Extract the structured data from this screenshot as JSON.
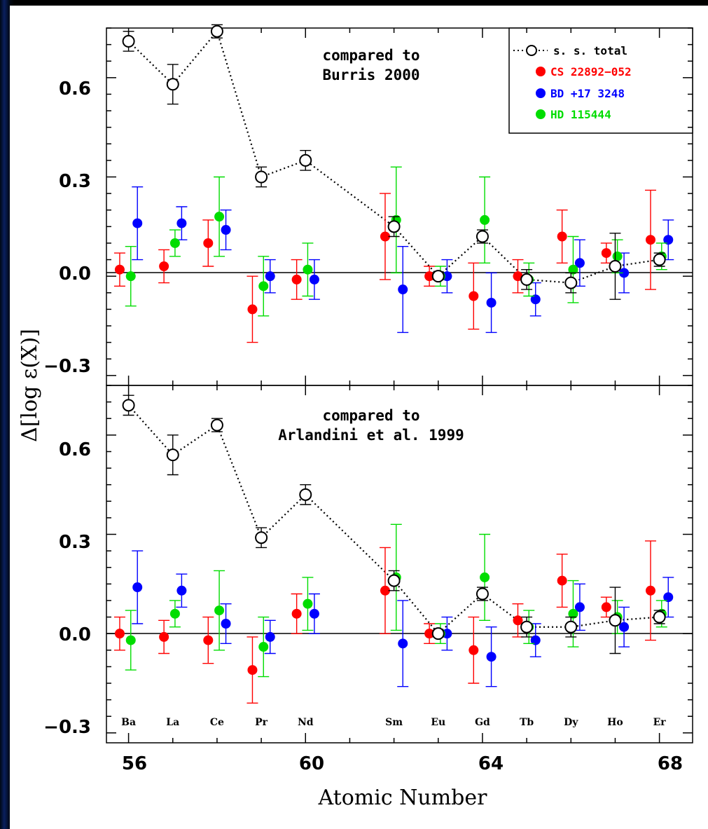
{
  "chart_data": {
    "type": "scatter",
    "xlabel": "Atomic Number",
    "ylabel": "Δ[log ε(X)]",
    "xlim": [
      55.5,
      68.75
    ],
    "x_ticks": [
      "56",
      "60",
      "64",
      "68"
    ],
    "y_ticks": [
      "0.6",
      "0.3",
      "0.0",
      "−0.3"
    ],
    "grid": false,
    "legend": {
      "placement": "top-right",
      "entries": [
        {
          "label": "s. s. total",
          "color": "#000000",
          "marker": "open-circle-dotted-line"
        },
        {
          "label": "CS 22892−052",
          "color": "#ff0000",
          "marker": "filled-circle"
        },
        {
          "label": "BD +17 3248",
          "color": "#0000ff",
          "marker": "filled-circle"
        },
        {
          "label": "HD 115444",
          "color": "#00dd00",
          "marker": "filled-circle"
        }
      ]
    },
    "element_labels": [
      {
        "z": 56,
        "label": "Ba"
      },
      {
        "z": 57,
        "label": "La"
      },
      {
        "z": 58,
        "label": "Ce"
      },
      {
        "z": 59,
        "label": "Pr"
      },
      {
        "z": 60,
        "label": "Nd"
      },
      {
        "z": 62,
        "label": "Sm"
      },
      {
        "z": 63,
        "label": "Eu"
      },
      {
        "z": 64,
        "label": "Gd"
      },
      {
        "z": 65,
        "label": "Tb"
      },
      {
        "z": 66,
        "label": "Dy"
      },
      {
        "z": 67,
        "label": "Ho"
      },
      {
        "z": 68,
        "label": "Er"
      }
    ],
    "panels": [
      {
        "annotation": [
          "compared to",
          "Burris 2000"
        ],
        "ylim": [
          -0.33,
          0.75
        ],
        "series": [
          {
            "name": "s. s. total",
            "color": "#000000",
            "offset": 0,
            "x": [
              56,
              57,
              58,
              59,
              60,
              62,
              63,
              64,
              65,
              66,
              67,
              68
            ],
            "y": [
              0.71,
              0.58,
              0.74,
              0.3,
              0.35,
              0.15,
              0.0,
              0.12,
              -0.01,
              -0.02,
              0.03,
              0.05
            ],
            "err": [
              0.03,
              0.06,
              0.02,
              0.03,
              0.03,
              0.03,
              0.01,
              0.02,
              0.03,
              0.03,
              0.1,
              0.02
            ]
          },
          {
            "name": "CS 22892−052",
            "color": "#ff0000",
            "offset": -0.2,
            "x": [
              56,
              57,
              58,
              59,
              60,
              62,
              63,
              64,
              65,
              66,
              67,
              68
            ],
            "y": [
              0.02,
              0.03,
              0.1,
              -0.1,
              -0.01,
              0.12,
              0.0,
              -0.06,
              0.0,
              0.12,
              0.07,
              0.11
            ],
            "err": [
              0.05,
              0.05,
              0.07,
              0.1,
              0.06,
              0.13,
              0.03,
              0.1,
              0.05,
              0.08,
              0.03,
              0.15
            ]
          },
          {
            "name": "BD +17 3248",
            "color": "#0000ff",
            "offset": 0.2,
            "x": [
              56,
              57,
              58,
              59,
              60,
              62,
              63,
              64,
              65,
              66,
              67,
              68
            ],
            "y": [
              0.16,
              0.16,
              0.14,
              0.0,
              -0.01,
              -0.04,
              0.0,
              -0.08,
              -0.07,
              0.04,
              0.01,
              0.11
            ],
            "err": [
              0.11,
              0.05,
              0.06,
              0.05,
              0.06,
              0.13,
              0.05,
              0.09,
              0.05,
              0.07,
              0.06,
              0.06
            ]
          },
          {
            "name": "HD 115444",
            "color": "#00dd00",
            "offset": 0.05,
            "x": [
              56,
              57,
              58,
              59,
              60,
              62,
              63,
              64,
              65,
              66,
              67,
              68
            ],
            "y": [
              0.0,
              0.1,
              0.18,
              -0.03,
              0.02,
              0.17,
              0.0,
              0.17,
              -0.01,
              0.02,
              0.06,
              0.06
            ],
            "err": [
              0.09,
              0.04,
              0.12,
              0.09,
              0.08,
              0.16,
              0.03,
              0.13,
              0.05,
              0.1,
              0.05,
              0.04
            ]
          }
        ]
      },
      {
        "annotation": [
          "compared to",
          "Arlandini et al. 1999"
        ],
        "ylim": [
          -0.33,
          0.75
        ],
        "series": [
          {
            "name": "s. s. total",
            "color": "#000000",
            "offset": 0,
            "x": [
              56,
              57,
              58,
              59,
              60,
              62,
              63,
              64,
              65,
              66,
              67,
              68
            ],
            "y": [
              0.69,
              0.54,
              0.63,
              0.29,
              0.42,
              0.16,
              0.0,
              0.12,
              0.02,
              0.02,
              0.04,
              0.05
            ],
            "err": [
              0.03,
              0.06,
              0.02,
              0.03,
              0.03,
              0.03,
              0.01,
              0.02,
              0.03,
              0.03,
              0.1,
              0.02
            ]
          },
          {
            "name": "CS 22892−052",
            "color": "#ff0000",
            "offset": -0.2,
            "x": [
              56,
              57,
              58,
              59,
              60,
              62,
              63,
              64,
              65,
              66,
              67,
              68
            ],
            "y": [
              0.0,
              -0.01,
              -0.02,
              -0.11,
              0.06,
              0.13,
              0.0,
              -0.05,
              0.04,
              0.16,
              0.08,
              0.13
            ],
            "err": [
              0.05,
              0.05,
              0.07,
              0.1,
              0.06,
              0.13,
              0.03,
              0.1,
              0.05,
              0.08,
              0.03,
              0.15
            ]
          },
          {
            "name": "BD +17 3248",
            "color": "#0000ff",
            "offset": 0.2,
            "x": [
              56,
              57,
              58,
              59,
              60,
              62,
              63,
              64,
              65,
              66,
              67,
              68
            ],
            "y": [
              0.14,
              0.13,
              0.03,
              -0.01,
              0.06,
              -0.03,
              0.0,
              -0.07,
              -0.02,
              0.08,
              0.02,
              0.11
            ],
            "err": [
              0.11,
              0.05,
              0.06,
              0.05,
              0.06,
              0.13,
              0.05,
              0.09,
              0.05,
              0.07,
              0.06,
              0.06
            ]
          },
          {
            "name": "HD 115444",
            "color": "#00dd00",
            "offset": 0.05,
            "x": [
              56,
              57,
              58,
              59,
              60,
              62,
              63,
              64,
              65,
              66,
              67,
              68
            ],
            "y": [
              -0.02,
              0.06,
              0.07,
              -0.04,
              0.09,
              0.17,
              0.0,
              0.17,
              0.02,
              0.06,
              0.05,
              0.06
            ],
            "err": [
              0.09,
              0.04,
              0.12,
              0.09,
              0.08,
              0.16,
              0.03,
              0.13,
              0.05,
              0.1,
              0.05,
              0.04
            ]
          }
        ]
      }
    ]
  }
}
